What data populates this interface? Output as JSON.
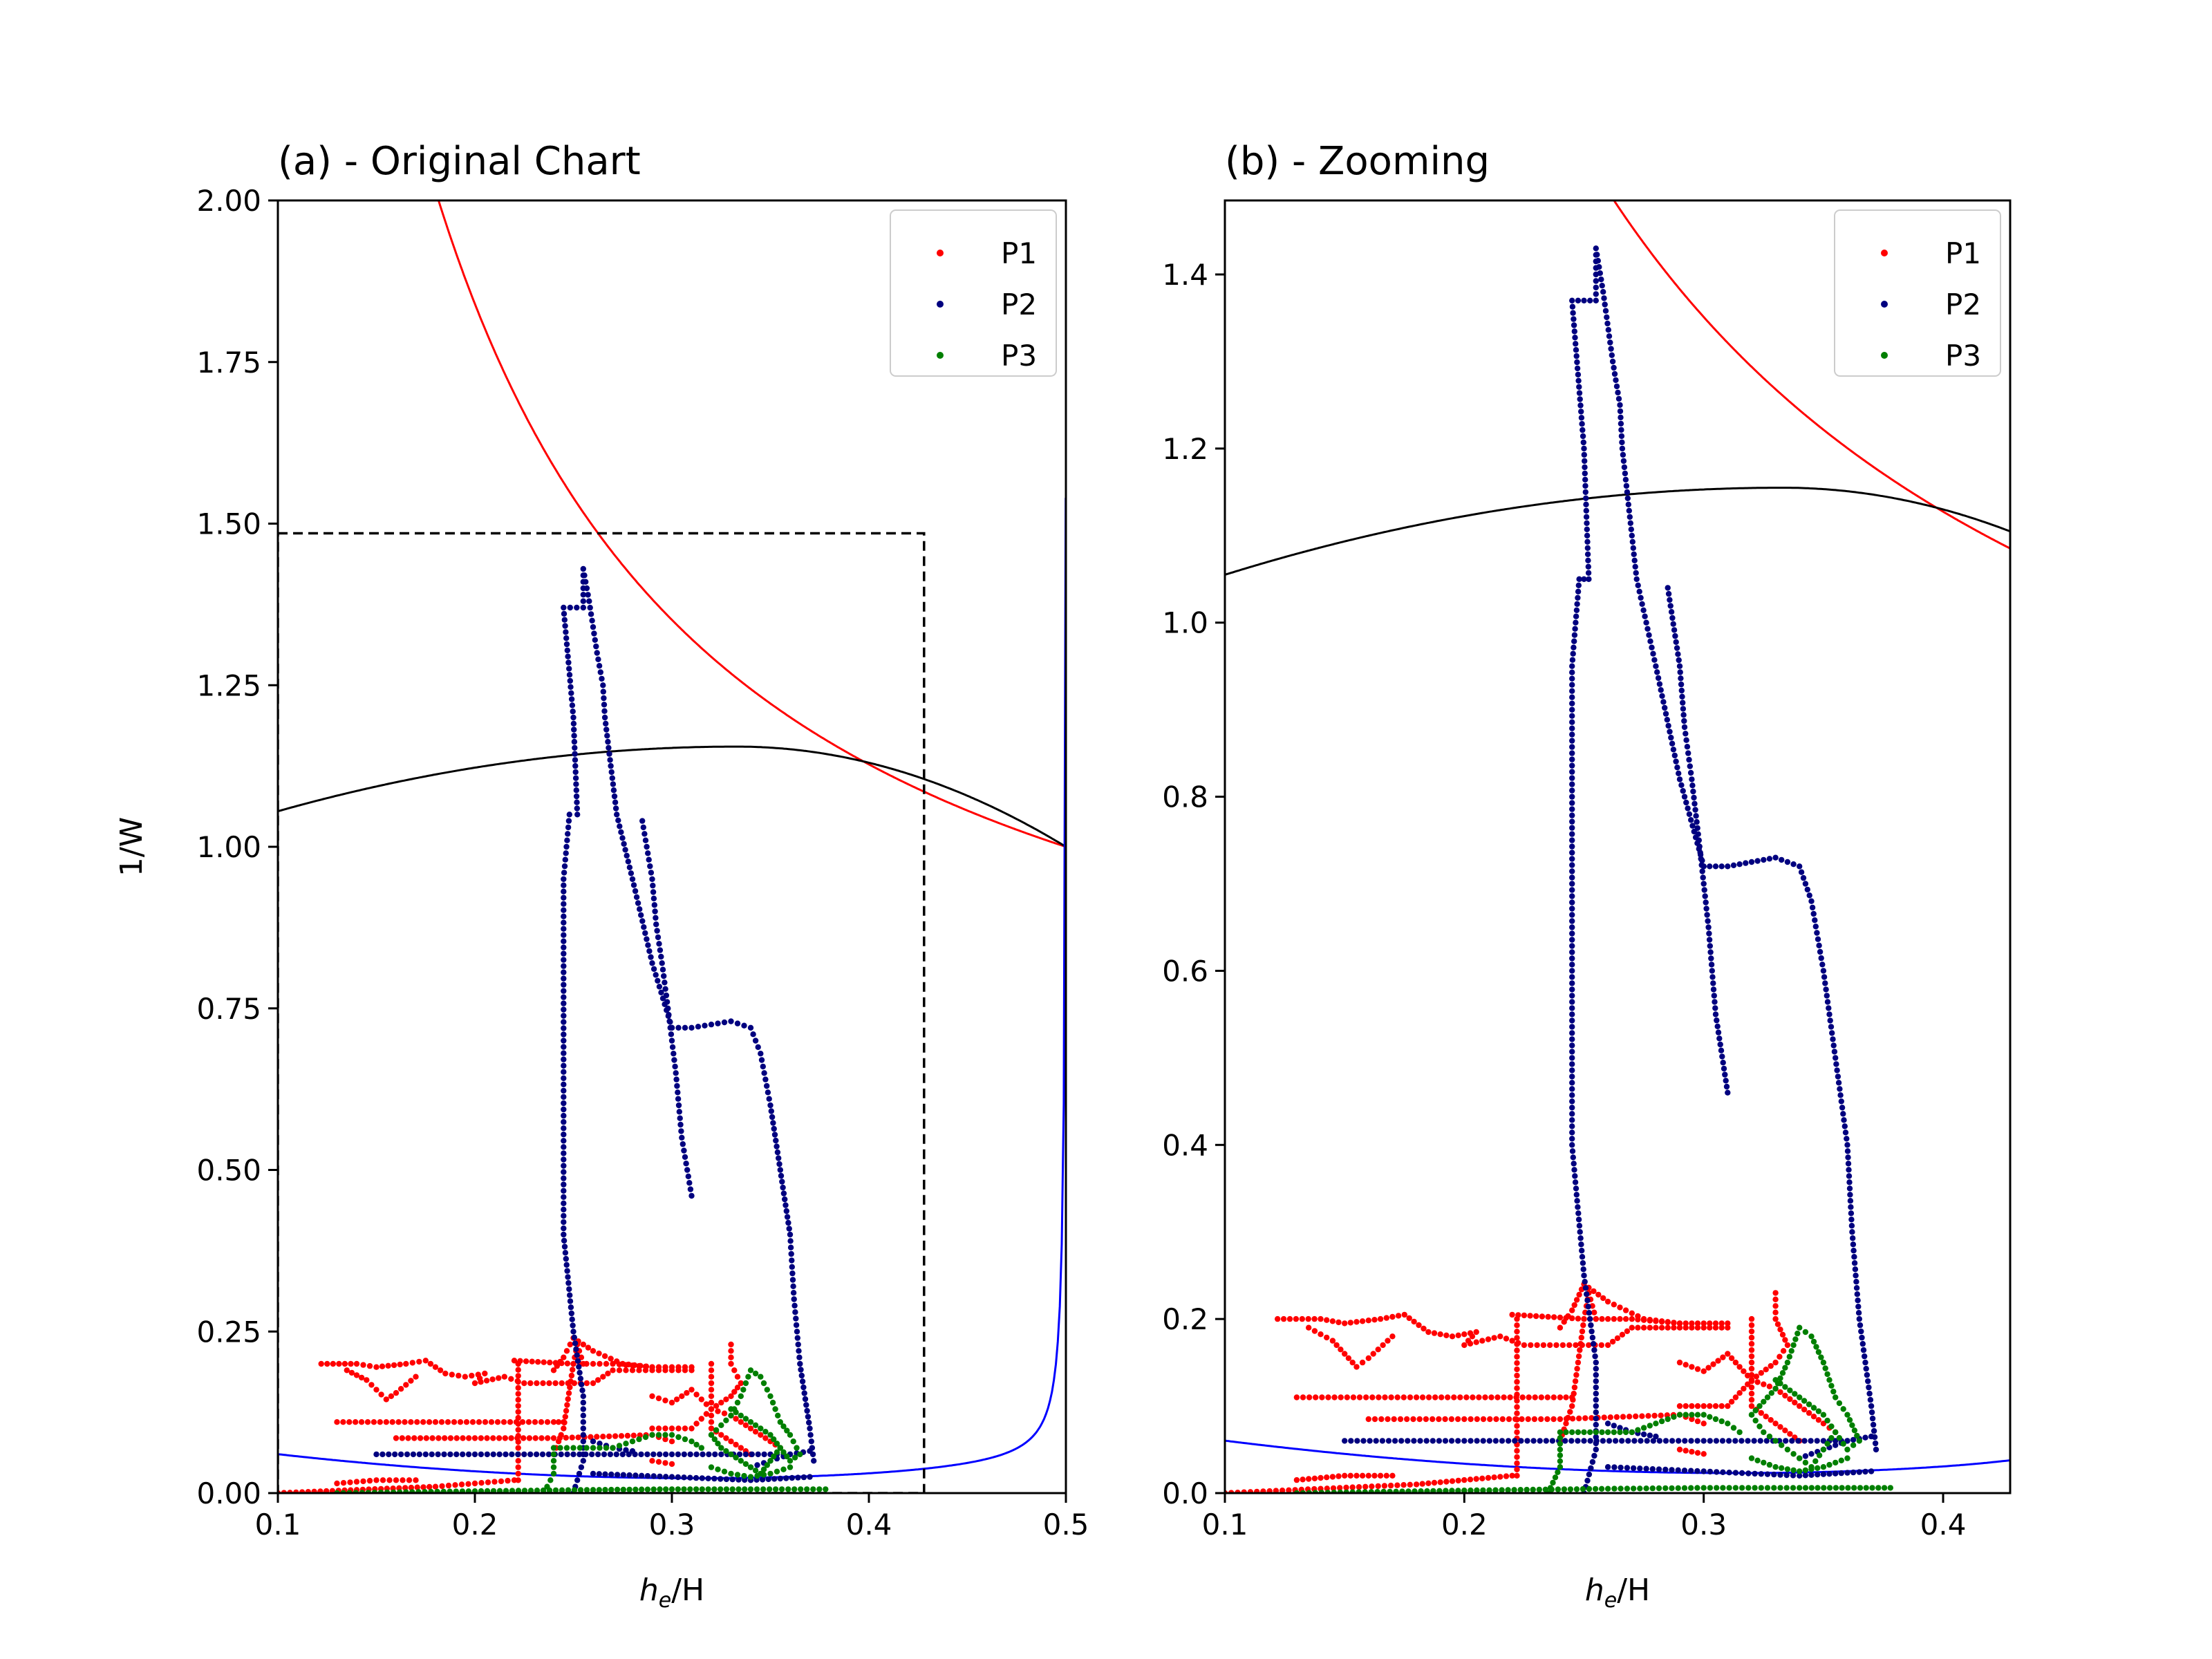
{
  "chart_data": [
    {
      "type": "scatter",
      "title": "(a) - Original Chart",
      "xlabel_main": "h",
      "xlabel_sub": "e",
      "xlabel_rest": "/H",
      "ylabel": "1/W",
      "xlim": [
        0.1,
        0.5
      ],
      "ylim": [
        0.0,
        2.0
      ],
      "xticks": [
        "0.1",
        "0.2",
        "0.3",
        "0.4",
        "0.5"
      ],
      "yticks": [
        "0.00",
        "0.25",
        "0.50",
        "0.75",
        "1.00",
        "1.25",
        "1.50",
        "1.75",
        "2.00"
      ],
      "legend": {
        "position": "top-right",
        "entries": [
          "P1",
          "P2",
          "P3"
        ]
      },
      "zoom_box": {
        "x": [
          0.1,
          0.428
        ],
        "y": [
          0.0,
          1.485
        ]
      }
    },
    {
      "type": "scatter",
      "title": "(b) - Zooming",
      "xlabel_main": "h",
      "xlabel_sub": "e",
      "xlabel_rest": "/H",
      "ylabel": "",
      "xlim": [
        0.1,
        0.428
      ],
      "ylim": [
        0.0,
        1.485
      ],
      "xticks": [
        "0.1",
        "0.2",
        "0.3",
        "0.4"
      ],
      "yticks": [
        "0.0",
        "0.2",
        "0.4",
        "0.6",
        "0.8",
        "1.0",
        "1.2",
        "1.4"
      ],
      "legend": {
        "position": "top-right",
        "entries": [
          "P1",
          "P2",
          "P3"
        ]
      }
    }
  ],
  "curves": {
    "red": {
      "color": "#ff0000",
      "formula": "y = 1.5 * (0.5 - x) / x over 0.5"
    },
    "black": {
      "color": "#000000",
      "formula": "smooth hump 1.055 -> 1.155 (x=0.333) -> 1.0 (x=0.5)"
    },
    "blue": {
      "color": "#0000ff",
      "formula": "low U-shaped curve rising steeply near x=0.5"
    }
  },
  "series": [
    {
      "name": "P1",
      "color": "#ff0000",
      "paths": [
        [
          [
            0.122,
            0.2
          ],
          [
            0.14,
            0.2
          ],
          [
            0.15,
            0.195
          ],
          [
            0.165,
            0.2
          ],
          [
            0.175,
            0.205
          ],
          [
            0.185,
            0.185
          ],
          [
            0.195,
            0.18
          ],
          [
            0.205,
            0.185
          ],
          [
            0.2,
            0.17
          ],
          [
            0.215,
            0.18
          ],
          [
            0.225,
            0.17
          ],
          [
            0.26,
            0.17
          ],
          [
            0.27,
            0.19
          ],
          [
            0.3,
            0.19
          ],
          [
            0.31,
            0.19
          ]
        ],
        [
          [
            0.135,
            0.19
          ],
          [
            0.145,
            0.175
          ],
          [
            0.155,
            0.145
          ],
          [
            0.16,
            0.155
          ],
          [
            0.17,
            0.18
          ]
        ],
        [
          [
            0.13,
            0.11
          ],
          [
            0.18,
            0.11
          ],
          [
            0.24,
            0.11
          ],
          [
            0.245,
            0.11
          ]
        ],
        [
          [
            0.16,
            0.085
          ],
          [
            0.2,
            0.085
          ],
          [
            0.24,
            0.085
          ],
          [
            0.29,
            0.09
          ],
          [
            0.3,
            0.08
          ]
        ],
        [
          [
            0.22,
            0.205
          ],
          [
            0.25,
            0.2
          ],
          [
            0.27,
            0.2
          ],
          [
            0.29,
            0.195
          ],
          [
            0.31,
            0.195
          ]
        ],
        [
          [
            0.222,
            0.02
          ],
          [
            0.222,
            0.07
          ],
          [
            0.222,
            0.2
          ]
        ],
        [
          [
            0.24,
            0.19
          ],
          [
            0.245,
            0.21
          ],
          [
            0.25,
            0.24
          ],
          [
            0.26,
            0.22
          ],
          [
            0.275,
            0.2
          ],
          [
            0.29,
            0.195
          ]
        ],
        [
          [
            0.24,
            0.06
          ],
          [
            0.245,
            0.1
          ],
          [
            0.25,
            0.2
          ],
          [
            0.252,
            0.23
          ],
          [
            0.255,
            0.2
          ]
        ],
        [
          [
            0.29,
            0.15
          ],
          [
            0.3,
            0.14
          ],
          [
            0.31,
            0.16
          ],
          [
            0.32,
            0.13
          ],
          [
            0.33,
            0.12
          ],
          [
            0.34,
            0.1
          ],
          [
            0.35,
            0.08
          ],
          [
            0.355,
            0.07
          ]
        ],
        [
          [
            0.33,
            0.23
          ],
          [
            0.33,
            0.2
          ],
          [
            0.335,
            0.17
          ],
          [
            0.33,
            0.15
          ],
          [
            0.32,
            0.13
          ],
          [
            0.31,
            0.1
          ],
          [
            0.3,
            0.1
          ],
          [
            0.29,
            0.1
          ]
        ],
        [
          [
            0.32,
            0.2
          ],
          [
            0.32,
            0.1
          ],
          [
            0.33,
            0.08
          ],
          [
            0.34,
            0.06
          ]
        ],
        [
          [
            0.1,
            0.0
          ],
          [
            0.14,
            0.005
          ],
          [
            0.18,
            0.01
          ],
          [
            0.2,
            0.015
          ],
          [
            0.22,
            0.02
          ]
        ],
        [
          [
            0.13,
            0.015
          ],
          [
            0.15,
            0.02
          ],
          [
            0.17,
            0.02
          ]
        ],
        [
          [
            0.29,
            0.05
          ],
          [
            0.3,
            0.045
          ]
        ]
      ]
    },
    {
      "name": "P2",
      "color": "#00007f",
      "paths": [
        [
          [
            0.15,
            0.06
          ],
          [
            0.2,
            0.06
          ],
          [
            0.25,
            0.06
          ],
          [
            0.3,
            0.06
          ],
          [
            0.35,
            0.06
          ],
          [
            0.36,
            0.06
          ]
        ],
        [
          [
            0.26,
            0.03
          ],
          [
            0.3,
            0.025
          ],
          [
            0.34,
            0.02
          ],
          [
            0.37,
            0.025
          ]
        ],
        [
          [
            0.25,
            0.0
          ],
          [
            0.255,
            0.05
          ],
          [
            0.255,
            0.15
          ],
          [
            0.25,
            0.25
          ],
          [
            0.245,
            0.4
          ],
          [
            0.245,
            0.7
          ],
          [
            0.245,
            0.95
          ],
          [
            0.248,
            1.05
          ],
          [
            0.252,
            1.05
          ],
          [
            0.25,
            1.2
          ],
          [
            0.245,
            1.37
          ],
          [
            0.255,
            1.37
          ],
          [
            0.255,
            1.43
          ],
          [
            0.258,
            1.38
          ],
          [
            0.262,
            1.3
          ],
          [
            0.265,
            1.25
          ],
          [
            0.266,
            1.2
          ],
          [
            0.272,
            1.05
          ],
          [
            0.28,
            0.95
          ],
          [
            0.29,
            0.82
          ],
          [
            0.3,
            0.72
          ]
        ],
        [
          [
            0.3,
            0.72
          ],
          [
            0.31,
            0.72
          ],
          [
            0.33,
            0.73
          ],
          [
            0.34,
            0.72
          ],
          [
            0.345,
            0.68
          ],
          [
            0.35,
            0.6
          ],
          [
            0.355,
            0.5
          ],
          [
            0.36,
            0.4
          ],
          [
            0.362,
            0.3
          ],
          [
            0.365,
            0.2
          ],
          [
            0.37,
            0.1
          ],
          [
            0.372,
            0.05
          ]
        ],
        [
          [
            0.285,
            1.04
          ],
          [
            0.29,
            0.95
          ],
          [
            0.292,
            0.88
          ],
          [
            0.295,
            0.82
          ],
          [
            0.298,
            0.75
          ],
          [
            0.302,
            0.65
          ],
          [
            0.305,
            0.55
          ],
          [
            0.31,
            0.46
          ]
        ],
        [
          [
            0.26,
            0.08
          ],
          [
            0.27,
            0.07
          ],
          [
            0.28,
            0.065
          ]
        ],
        [
          [
            0.34,
            0.04
          ],
          [
            0.35,
            0.05
          ],
          [
            0.36,
            0.06
          ],
          [
            0.37,
            0.065
          ]
        ]
      ]
    },
    {
      "name": "P3",
      "color": "#007f00",
      "paths": [
        [
          [
            0.235,
            0.0
          ],
          [
            0.24,
            0.03
          ],
          [
            0.24,
            0.07
          ],
          [
            0.25,
            0.07
          ],
          [
            0.27,
            0.07
          ],
          [
            0.28,
            0.08
          ],
          [
            0.29,
            0.09
          ],
          [
            0.3,
            0.09
          ],
          [
            0.31,
            0.08
          ],
          [
            0.315,
            0.07
          ]
        ],
        [
          [
            0.32,
            0.09
          ],
          [
            0.33,
            0.12
          ],
          [
            0.335,
            0.15
          ],
          [
            0.34,
            0.19
          ],
          [
            0.345,
            0.18
          ],
          [
            0.35,
            0.15
          ],
          [
            0.355,
            0.11
          ],
          [
            0.36,
            0.09
          ],
          [
            0.365,
            0.06
          ],
          [
            0.36,
            0.05
          ],
          [
            0.355,
            0.07
          ],
          [
            0.35,
            0.05
          ],
          [
            0.345,
            0.03
          ],
          [
            0.34,
            0.04
          ],
          [
            0.335,
            0.05
          ],
          [
            0.33,
            0.06
          ],
          [
            0.325,
            0.07
          ],
          [
            0.32,
            0.09
          ]
        ],
        [
          [
            0.33,
            0.13
          ],
          [
            0.34,
            0.11
          ],
          [
            0.35,
            0.09
          ],
          [
            0.355,
            0.07
          ]
        ],
        [
          [
            0.13,
            0.0
          ],
          [
            0.2,
            0.003
          ],
          [
            0.26,
            0.005
          ],
          [
            0.3,
            0.006
          ],
          [
            0.34,
            0.006
          ],
          [
            0.378,
            0.006
          ]
        ],
        [
          [
            0.32,
            0.04
          ],
          [
            0.33,
            0.03
          ],
          [
            0.34,
            0.025
          ],
          [
            0.35,
            0.03
          ],
          [
            0.36,
            0.04
          ]
        ]
      ]
    }
  ]
}
